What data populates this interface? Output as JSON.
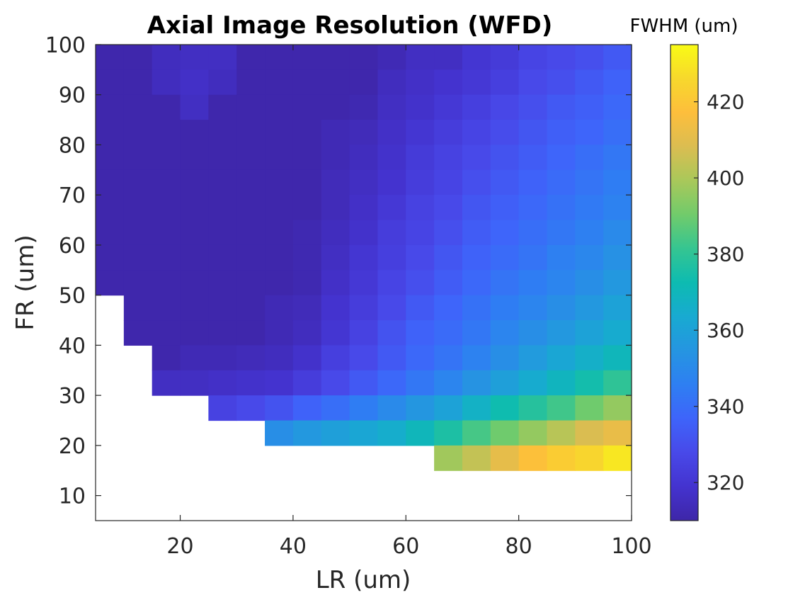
{
  "chart_data": {
    "type": "heatmap",
    "title": "Axial Image Resolution (WFD)",
    "xlabel": "LR (um)",
    "ylabel": "FR (um)",
    "xlim": [
      5,
      100
    ],
    "ylim": [
      5,
      100
    ],
    "x_ticks": [
      20,
      40,
      60,
      80,
      100
    ],
    "y_ticks": [
      10,
      20,
      30,
      40,
      50,
      60,
      70,
      80,
      90,
      100
    ],
    "x_centers": [
      7.5,
      12.5,
      17.5,
      22.5,
      27.5,
      32.5,
      37.5,
      42.5,
      47.5,
      52.5,
      57.5,
      62.5,
      67.5,
      72.5,
      77.5,
      82.5,
      87.5,
      92.5,
      97.5
    ],
    "y_centers": [
      97.5,
      92.5,
      87.5,
      82.5,
      77.5,
      72.5,
      67.5,
      62.5,
      57.5,
      52.5,
      47.5,
      42.5,
      37.5,
      32.5,
      27.5,
      22.5,
      17.5
    ],
    "values": [
      [
        311,
        311,
        315,
        316,
        316,
        311,
        311,
        311,
        311,
        311,
        313,
        316,
        316,
        320,
        322,
        326,
        328,
        330,
        333
      ],
      [
        311,
        311,
        315,
        317,
        315,
        311,
        311,
        311,
        311,
        311,
        315,
        317,
        319,
        321,
        324,
        328,
        330,
        333,
        336
      ],
      [
        311,
        311,
        311,
        316,
        311,
        311,
        311,
        311,
        311,
        312,
        316,
        318,
        321,
        324,
        327,
        330,
        333,
        335,
        338
      ],
      [
        311,
        311,
        311,
        311,
        311,
        311,
        311,
        311,
        313,
        314,
        317,
        320,
        323,
        326,
        329,
        332,
        335,
        337,
        340
      ],
      [
        311,
        311,
        311,
        311,
        311,
        311,
        311,
        311,
        313,
        315,
        318,
        322,
        325,
        328,
        331,
        334,
        337,
        340,
        343
      ],
      [
        311,
        311,
        311,
        311,
        311,
        311,
        311,
        311,
        314,
        316,
        319,
        323,
        326,
        330,
        333,
        336,
        339,
        342,
        345
      ],
      [
        311,
        311,
        311,
        311,
        311,
        311,
        311,
        311,
        314,
        317,
        321,
        325,
        328,
        332,
        335,
        338,
        341,
        344,
        347
      ],
      [
        311,
        311,
        311,
        311,
        311,
        311,
        311,
        312,
        315,
        318,
        323,
        326,
        330,
        334,
        337,
        340,
        343,
        346,
        350
      ],
      [
        311,
        311,
        311,
        311,
        311,
        311,
        311,
        312,
        316,
        320,
        324,
        328,
        332,
        336,
        339,
        342,
        346,
        349,
        353
      ],
      [
        311,
        311,
        311,
        311,
        311,
        311,
        311,
        312,
        317,
        321,
        326,
        330,
        334,
        338,
        342,
        345,
        348,
        352,
        356
      ],
      [
        null,
        311,
        311,
        311,
        311,
        311,
        313,
        314,
        319,
        323,
        328,
        333,
        337,
        341,
        345,
        348,
        352,
        356,
        360
      ],
      [
        null,
        311,
        311,
        311,
        311,
        311,
        313,
        315,
        320,
        325,
        331,
        336,
        339,
        343,
        348,
        352,
        356,
        360,
        364
      ],
      [
        null,
        null,
        311,
        313,
        313,
        314,
        315,
        318,
        324,
        328,
        333,
        338,
        342,
        347,
        352,
        357,
        362,
        366,
        370
      ],
      [
        null,
        null,
        316,
        316,
        317,
        318,
        319,
        323,
        328,
        333,
        338,
        343,
        348,
        354,
        359,
        364,
        369,
        374,
        380
      ],
      [
        null,
        null,
        null,
        null,
        325,
        328,
        331,
        336,
        340,
        345,
        350,
        355,
        360,
        367,
        373,
        378,
        383,
        390,
        396
      ],
      [
        null,
        null,
        null,
        null,
        null,
        null,
        352,
        356,
        359,
        362,
        365,
        370,
        376,
        384,
        390,
        396,
        402,
        408,
        412
      ],
      [
        null,
        null,
        null,
        null,
        null,
        null,
        null,
        null,
        null,
        null,
        null,
        null,
        398,
        404,
        411,
        418,
        422,
        425,
        430
      ]
    ],
    "colorbar": {
      "label": "FWHM (um)",
      "range": [
        310,
        435
      ],
      "ticks": [
        320,
        340,
        360,
        380,
        400,
        420
      ]
    },
    "colormap": [
      "#3e26a8",
      "#4433cf",
      "#4849e9",
      "#3e64fa",
      "#2e7ff2",
      "#2595e1",
      "#18aad1",
      "#0dbbb1",
      "#35c591",
      "#71cb6b",
      "#a9c85a",
      "#dbbd51",
      "#fdbe3c",
      "#f7d82c",
      "#f9fb15"
    ],
    "grid": false,
    "legend": "none"
  }
}
